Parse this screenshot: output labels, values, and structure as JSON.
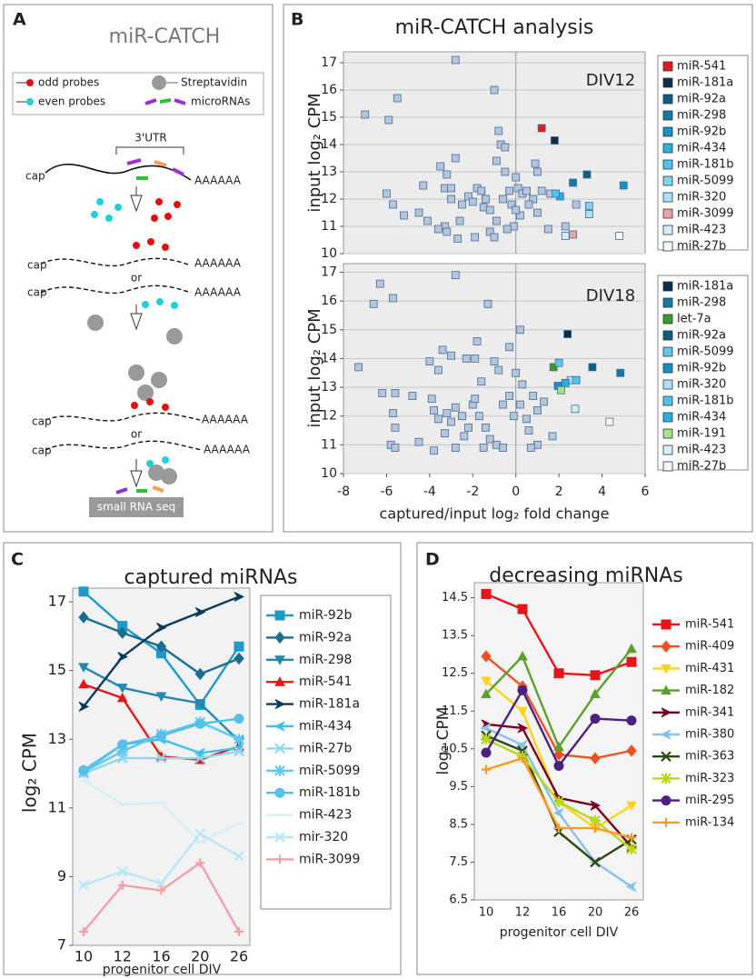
{
  "panel_labels": [
    "A",
    "B",
    "C",
    "D"
  ],
  "diagram": {
    "title": "miR-CATCH",
    "legend": [
      "odd probes",
      "even probes",
      "Streptavidin",
      "microRNAs"
    ],
    "utr": "3'UTR",
    "caps": [
      "cap",
      "cap",
      "cap",
      "cap",
      "cap"
    ],
    "tails": [
      "AAAAAA",
      "AAAAAA",
      "AAAAAA",
      "AAAAAA",
      "AAAAAA"
    ],
    "ors": [
      "or",
      "or"
    ],
    "output": "small RNA seq"
  },
  "chart_data": [
    {
      "type": "scatter",
      "title": "miR-CATCH analysis",
      "annotation": "DIV12",
      "ylabel": "input log₂ CPM",
      "xlim": [
        -8,
        6
      ],
      "ylim": [
        10,
        17.4
      ],
      "yticks": [
        10,
        11,
        12,
        13,
        14,
        15,
        16,
        17
      ],
      "grid": true,
      "series": [
        {
          "color": "#b4c6de",
          "x": [
            -7.0,
            -5.9,
            -5.5,
            -2.8,
            -1.0,
            -6.0,
            -5.7,
            -5.2,
            -4.5,
            -3.5,
            -3.3,
            -3.0,
            -3.2,
            -2.8,
            -3.0,
            -2.5,
            -2.2,
            -2.6,
            -3.3,
            -3.2,
            -2.7,
            -1.9,
            -1.5,
            -1.8,
            -1.4,
            -1.2,
            -0.9,
            -0.8,
            -0.7,
            -0.5,
            -0.6,
            -0.3,
            -0.2,
            -0.9,
            -1.2,
            -1.0,
            0.0,
            0.1,
            0.3,
            0.5,
            0.8,
            0.6,
            0.2,
            -0.1,
            1.2,
            1.0,
            2.8,
            1.5,
            0.9,
            1.0,
            -4.1,
            -4.3,
            -3.6,
            -0.5,
            2.3,
            -1.6,
            -2.0,
            0.0,
            -0.4,
            1.6
          ],
          "y": [
            15.1,
            14.9,
            15.7,
            17.1,
            16.0,
            12.2,
            11.8,
            11.4,
            11.5,
            13.2,
            12.4,
            12.4,
            12.9,
            13.5,
            12.0,
            11.8,
            12.1,
            11.2,
            11.0,
            10.8,
            10.55,
            10.6,
            11.7,
            12.4,
            12.0,
            11.6,
            13.4,
            14.5,
            14.0,
            13.0,
            12.0,
            12.3,
            11.8,
            11.2,
            10.8,
            10.6,
            12.8,
            12.4,
            12.2,
            12.3,
            12.0,
            11.8,
            11.4,
            11.0,
            12.3,
            11.5,
            11.8,
            10.9,
            13.3,
            13.0,
            11.2,
            12.5,
            10.9,
            13.9,
            11.0,
            12.3,
            11.9,
            11.6,
            10.9,
            12.2
          ]
        },
        {
          "name": "miR-541",
          "color": "#e31a1c",
          "x": [
            1.2
          ],
          "y": [
            14.6
          ]
        },
        {
          "name": "miR-181a",
          "color": "#08304e",
          "x": [
            1.8
          ],
          "y": [
            14.15
          ]
        },
        {
          "name": "miR-92a",
          "color": "#0d5e84",
          "x": [
            3.3
          ],
          "y": [
            12.9
          ]
        },
        {
          "name": "miR-298",
          "color": "#1478a8",
          "x": [
            2.65
          ],
          "y": [
            12.6
          ]
        },
        {
          "name": "miR-92b",
          "color": "#1590c8",
          "x": [
            5.0
          ],
          "y": [
            12.5
          ]
        },
        {
          "name": "miR-434",
          "color": "#28b0e0",
          "x": [
            2.05
          ],
          "y": [
            12.1
          ]
        },
        {
          "name": "miR-181b",
          "color": "#4cc4ee",
          "x": [
            1.85
          ],
          "y": [
            12.2
          ]
        },
        {
          "name": "miR-5099",
          "color": "#7dd4f2",
          "x": [
            3.4
          ],
          "y": [
            11.75
          ]
        },
        {
          "name": "miR-320",
          "color": "#a8e2f6",
          "x": [
            3.4
          ],
          "y": [
            11.45
          ]
        },
        {
          "name": "miR-3099",
          "color": "#f0a0a8",
          "x": [
            2.65
          ],
          "y": [
            10.7
          ]
        },
        {
          "name": "miR-423",
          "color": "#d0f0fa",
          "x": [
            2.3
          ],
          "y": [
            10.65
          ]
        },
        {
          "name": "miR-27b",
          "color": "#f4fbfe",
          "x": [
            4.8
          ],
          "y": [
            10.65
          ]
        }
      ]
    },
    {
      "type": "scatter",
      "annotation": "DIV18",
      "ylabel": "input log₂ CPM",
      "xlabel": "captured/input log₂ fold change",
      "xlim": [
        -8,
        6
      ],
      "xticks": [
        -8,
        -6,
        -4,
        -2,
        0,
        2,
        4,
        6
      ],
      "ylim": [
        10,
        17.3
      ],
      "yticks": [
        10,
        11,
        12,
        13,
        14,
        15,
        16,
        17
      ],
      "grid": true,
      "series": [
        {
          "color": "#b4c6de",
          "x": [
            -7.3,
            -6.3,
            -6.6,
            -5.7,
            -2.8,
            -1.3,
            -1.8,
            0.2,
            -0.3,
            -6.2,
            -5.6,
            -4.8,
            -5.7,
            -5.6,
            -5.8,
            -5.6,
            -4.5,
            -3.8,
            -4.0,
            -3.6,
            -3.4,
            -3.0,
            -2.3,
            -1.9,
            -3.8,
            -3.6,
            -3.2,
            -3.0,
            -2.8,
            -2.5,
            -2.2,
            -2.0,
            -1.6,
            -1.7,
            -1.4,
            -1.2,
            -0.9,
            -0.6,
            -1.5,
            -2.8,
            -0.6,
            -0.3,
            -0.1,
            0.2,
            0.5,
            0.8,
            1.0,
            1.3,
            0.6,
            1.0,
            1.7,
            0.3,
            0.0,
            -0.8,
            -1.0,
            -3.9,
            -2.4,
            0.7,
            -3.3,
            -1.9
          ],
          "y": [
            13.7,
            16.6,
            15.9,
            16.1,
            16.9,
            15.9,
            14.6,
            15.0,
            14.4,
            12.8,
            12.8,
            12.7,
            12.1,
            11.6,
            11.0,
            10.9,
            11.1,
            10.8,
            13.9,
            13.6,
            14.3,
            14.1,
            14.0,
            14.0,
            12.2,
            11.9,
            12.1,
            11.8,
            12.3,
            12.0,
            11.6,
            12.4,
            13.2,
            12.0,
            11.6,
            11.2,
            11.0,
            10.9,
            10.9,
            10.9,
            12.4,
            12.7,
            12.0,
            12.4,
            11.9,
            12.7,
            12.2,
            12.5,
            11.5,
            11.0,
            11.3,
            13.1,
            13.5,
            13.6,
            13.9,
            12.6,
            11.3,
            10.9,
            11.4,
            12.6
          ]
        },
        {
          "name": "miR-181a",
          "color": "#08304e",
          "x": [
            2.4
          ],
          "y": [
            14.85
          ]
        },
        {
          "name": "miR-298",
          "color": "#1478a8",
          "x": [
            4.85
          ],
          "y": [
            13.5
          ]
        },
        {
          "name": "let-7a",
          "color": "#3a9a2a",
          "x": [
            1.75
          ],
          "y": [
            13.7
          ]
        },
        {
          "name": "miR-92a",
          "color": "#0d5e84",
          "x": [
            3.55
          ],
          "y": [
            13.7
          ]
        },
        {
          "name": "miR-5099",
          "color": "#5ccaf0",
          "x": [
            2.0
          ],
          "y": [
            13.85
          ]
        },
        {
          "name": "miR-92b",
          "color": "#1590c8",
          "x": [
            1.95
          ],
          "y": [
            13.05
          ]
        },
        {
          "name": "miR-320",
          "color": "#a8e2f6",
          "x": [
            2.55
          ],
          "y": [
            13.25
          ]
        },
        {
          "name": "miR-181b",
          "color": "#4cc4ee",
          "x": [
            2.8
          ],
          "y": [
            13.25
          ]
        },
        {
          "name": "miR-434",
          "color": "#28b0e0",
          "x": [
            2.3
          ],
          "y": [
            13.15
          ]
        },
        {
          "name": "miR-191",
          "color": "#a8e08a",
          "x": [
            2.1
          ],
          "y": [
            12.9
          ]
        },
        {
          "name": "miR-423",
          "color": "#d0f0fa",
          "x": [
            2.75
          ],
          "y": [
            12.25
          ]
        },
        {
          "name": "miR-27b",
          "color": "#f4fbfe",
          "x": [
            4.35
          ],
          "y": [
            11.8
          ]
        }
      ]
    },
    {
      "type": "line",
      "title": "captured miRNAs",
      "ylabel": "log₂ CPM",
      "xlabel": "progenitor cell DIV",
      "categories": [
        "10",
        "12",
        "16",
        "20",
        "26"
      ],
      "ylim": [
        7,
        17.4
      ],
      "yticks": [
        7,
        9,
        11,
        13,
        15,
        17
      ],
      "grid": false,
      "series": [
        {
          "name": "miR-92b",
          "color": "#1e9ac8",
          "marker": "square",
          "values": [
            17.3,
            16.3,
            15.5,
            14.0,
            15.7
          ]
        },
        {
          "name": "miR-92a",
          "color": "#1a6f90",
          "marker": "diamond",
          "values": [
            16.55,
            16.1,
            15.7,
            14.9,
            15.35
          ]
        },
        {
          "name": "miR-298",
          "color": "#2288b0",
          "marker": "triangle-down",
          "values": [
            15.1,
            14.5,
            14.25,
            14.05,
            12.95
          ]
        },
        {
          "name": "miR-541",
          "color": "#e31a1c",
          "marker": "triangle",
          "values": [
            14.6,
            14.2,
            12.5,
            12.4,
            12.8
          ]
        },
        {
          "name": "miR-181a",
          "color": "#0b3a5a",
          "marker": "arrow-right",
          "values": [
            13.95,
            15.4,
            16.25,
            16.7,
            17.15
          ]
        },
        {
          "name": "miR-434",
          "color": "#3cc0ee",
          "marker": "arrow-left",
          "values": [
            12.05,
            12.85,
            13.0,
            12.6,
            12.75
          ]
        },
        {
          "name": "miR-27b",
          "color": "#8dd8f0",
          "marker": "x",
          "values": [
            12.0,
            12.45,
            12.45,
            12.45,
            12.65
          ]
        },
        {
          "name": "miR-5099",
          "color": "#5dc8f0",
          "marker": "star",
          "values": [
            12.05,
            12.65,
            13.15,
            13.5,
            13.0
          ]
        },
        {
          "name": "miR-181b",
          "color": "#55c0e8",
          "marker": "circle",
          "values": [
            12.1,
            12.85,
            13.1,
            13.45,
            13.6
          ]
        },
        {
          "name": "miR-423",
          "color": "#d4eef8",
          "marker": "dash",
          "values": [
            11.8,
            11.1,
            11.15,
            10.0,
            10.55
          ]
        },
        {
          "name": "mir-320",
          "color": "#b8e6f6",
          "marker": "cross",
          "values": [
            8.75,
            9.15,
            8.8,
            10.25,
            9.6
          ]
        },
        {
          "name": "miR-3099",
          "color": "#f0a0a8",
          "marker": "plus",
          "values": [
            7.4,
            8.75,
            8.6,
            9.4,
            7.4
          ]
        }
      ]
    },
    {
      "type": "line",
      "title": "decreasing miRNAs",
      "ylabel": "log₂ CPM",
      "xlabel": "progenitor cell DIV",
      "categories": [
        "10",
        "12",
        "16",
        "20",
        "26"
      ],
      "ylim": [
        6.5,
        14.9
      ],
      "yticks": [
        6.5,
        7.5,
        8.5,
        9.5,
        10.5,
        11.5,
        12.5,
        13.5,
        14.5
      ],
      "grid": false,
      "series": [
        {
          "name": "miR-541",
          "color": "#e8141c",
          "marker": "square",
          "values": [
            14.6,
            14.2,
            12.5,
            12.45,
            12.8
          ]
        },
        {
          "name": "miR-409",
          "color": "#f05020",
          "marker": "diamond",
          "values": [
            12.95,
            12.15,
            10.35,
            10.25,
            10.45
          ]
        },
        {
          "name": "miR-431",
          "color": "#ffd21a",
          "marker": "triangle-down",
          "values": [
            12.3,
            11.5,
            9.1,
            8.4,
            9.0
          ]
        },
        {
          "name": "miR-182",
          "color": "#5ca02c",
          "marker": "triangle",
          "values": [
            11.95,
            12.95,
            10.55,
            11.95,
            13.15
          ]
        },
        {
          "name": "miR-341",
          "color": "#7a0020",
          "marker": "arrow-right",
          "values": [
            11.15,
            11.05,
            9.2,
            9.0,
            7.9
          ]
        },
        {
          "name": "miR-380",
          "color": "#88c0f0",
          "marker": "arrow-left",
          "values": [
            11.05,
            10.6,
            8.8,
            7.5,
            6.85
          ]
        },
        {
          "name": "miR-363",
          "color": "#2a4a10",
          "marker": "x",
          "values": [
            10.85,
            10.45,
            8.3,
            7.5,
            8.1
          ]
        },
        {
          "name": "miR-323",
          "color": "#b8d820",
          "marker": "star",
          "values": [
            10.75,
            10.3,
            9.1,
            8.6,
            7.85
          ]
        },
        {
          "name": "miR-295",
          "color": "#4a2080",
          "marker": "circle",
          "values": [
            10.4,
            12.05,
            10.05,
            11.3,
            11.25
          ]
        },
        {
          "name": "miR-134",
          "color": "#ff9a20",
          "marker": "plus",
          "values": [
            9.95,
            10.25,
            8.4,
            8.4,
            8.15
          ]
        }
      ]
    }
  ]
}
